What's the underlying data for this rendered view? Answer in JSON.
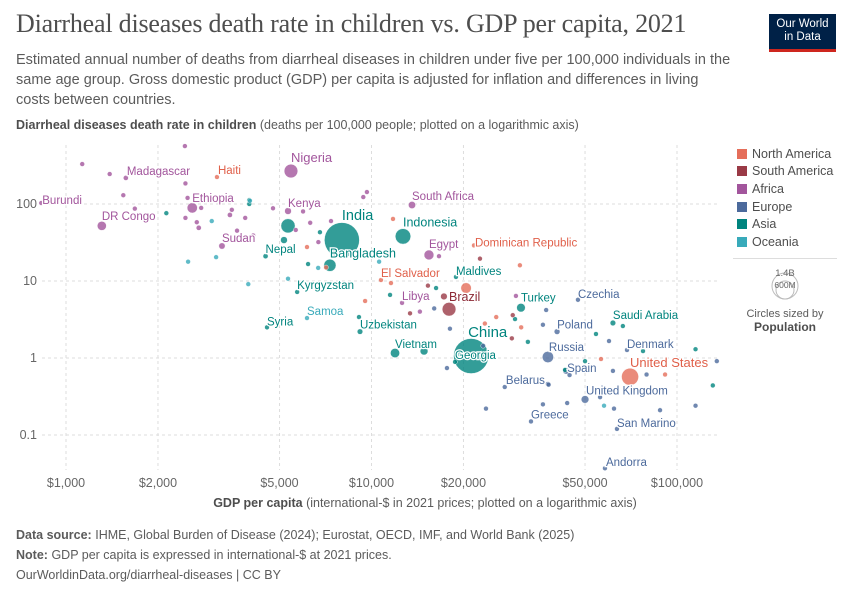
{
  "header": {
    "title": "Diarrheal diseases death rate in children vs. GDP per capita, 2021",
    "subtitle": "Estimated annual number of deaths from diarrheal diseases in children under five per 100,000 individuals in the same age group. Gross domestic product (GDP) per capita is adjusted for inflation and differences in living costs between countries.",
    "logo_line1": "Our World",
    "logo_line2": "in Data"
  },
  "footer": {
    "source_label": "Data source:",
    "source_text": "IHME, Global Burden of Disease (2024); Eurostat, OECD, IMF, and World Bank (2025)",
    "note_label": "Note:",
    "note_text": "GDP per capita is expressed in international-$ at 2021 prices.",
    "url": "OurWorldinData.org/diarrheal-diseases | CC BY"
  },
  "legend": {
    "items": [
      {
        "label": "North America",
        "key": "NA"
      },
      {
        "label": "South America",
        "key": "SA"
      },
      {
        "label": "Africa",
        "key": "AF"
      },
      {
        "label": "Europe",
        "key": "EU"
      },
      {
        "label": "Asia",
        "key": "AS"
      },
      {
        "label": "Oceania",
        "key": "OC"
      }
    ],
    "size_large": "1.4B",
    "size_small": "600M",
    "size_caption": "Circles sized by",
    "size_variable": "Population"
  },
  "chart_data": {
    "type": "scatter",
    "title": "Diarrheal diseases death rate in children vs. GDP per capita, 2021",
    "ylabel_bold": "Diarrheal diseases death rate in children",
    "ylabel_rest": "(deaths per 100,000 people; plotted on a logarithmic axis)",
    "xlabel_bold": "GDP per capita",
    "xlabel_rest": "(international-$ in 2021 prices; plotted on a logarithmic axis)",
    "x_scale": "log",
    "y_scale": "log",
    "xlim": [
      830,
      138000
    ],
    "ylim": [
      0.034,
      570
    ],
    "x_ticks": [
      {
        "v": 1000,
        "label": "$1,000"
      },
      {
        "v": 2000,
        "label": "$2,000"
      },
      {
        "v": 5000,
        "label": "$5,000"
      },
      {
        "v": 10000,
        "label": "$10,000"
      },
      {
        "v": 20000,
        "label": "$20,000"
      },
      {
        "v": 50000,
        "label": "$50,000"
      },
      {
        "v": 100000,
        "label": "$100,000"
      }
    ],
    "y_ticks": [
      {
        "v": 100,
        "label": "100"
      },
      {
        "v": 10,
        "label": "10"
      },
      {
        "v": 1,
        "label": "1"
      },
      {
        "v": 0.1,
        "label": "0.1"
      }
    ],
    "grid": true,
    "legend_position": "right",
    "colors": {
      "NA": "#E56E5A",
      "SA": "#9A3A46",
      "AF": "#A2559C",
      "EU": "#4C6A9C",
      "AS": "#00847E",
      "OC": "#38AABA"
    },
    "label_colors": {
      "NA": "#E0604A",
      "SA": "#8C2A36",
      "AF": "#A2559C",
      "EU": "#4C6A9C",
      "AS": "#00847E",
      "OC": "#38AABA"
    },
    "points": [
      {
        "name": "Nigeria",
        "gdp": 5450,
        "rate": 268,
        "c": "AF",
        "pop": 213
      },
      {
        "name": "Madagascar",
        "gdp": 1570,
        "rate": 218,
        "c": "AF",
        "pop": 29
      },
      {
        "name": "Haiti",
        "gdp": 3120,
        "rate": 224,
        "c": "NA",
        "pop": 11
      },
      {
        "name": "Burundi",
        "gdp": 830,
        "rate": 103,
        "c": "AF",
        "pop": 12
      },
      {
        "name": "Ethiopia",
        "gdp": 2590,
        "rate": 89,
        "c": "AF",
        "pop": 120
      },
      {
        "name": "DR Congo",
        "gdp": 1310,
        "rate": 52,
        "c": "AF",
        "pop": 95
      },
      {
        "name": "Kenya",
        "gdp": 5330,
        "rate": 81,
        "c": "AF",
        "pop": 53
      },
      {
        "name": "Sudan",
        "gdp": 3240,
        "rate": 28.5,
        "c": "AF",
        "pop": 46
      },
      {
        "name": "India",
        "gdp": 8000,
        "rate": 34,
        "c": "AS",
        "pop": 1410
      },
      {
        "name": "South Africa",
        "gdp": 13570,
        "rate": 97,
        "c": "AF",
        "pop": 60
      },
      {
        "name": "Indonesia",
        "gdp": 12680,
        "rate": 38,
        "c": "AS",
        "pop": 275
      },
      {
        "name": "Egypt",
        "gdp": 15420,
        "rate": 21.8,
        "c": "AF",
        "pop": 110
      },
      {
        "name": "Dominican Republic",
        "gdp": 21650,
        "rate": 29,
        "c": "NA",
        "pop": 11
      },
      {
        "name": "Bangladesh",
        "gdp": 7310,
        "rate": 16,
        "c": "AS",
        "pop": 170
      },
      {
        "name": "Nepal",
        "gdp": 4500,
        "rate": 21,
        "c": "AS",
        "pop": 30
      },
      {
        "name": "El Salvador",
        "gdp": 10740,
        "rate": 10.3,
        "c": "NA",
        "pop": 6.3
      },
      {
        "name": "Maldives",
        "gdp": 18900,
        "rate": 11.3,
        "c": "AS",
        "pop": 0.5
      },
      {
        "name": "Kyrgyzstan",
        "gdp": 5710,
        "rate": 7.2,
        "c": "AS",
        "pop": 6.7
      },
      {
        "name": "Libya",
        "gdp": 12590,
        "rate": 5.2,
        "c": "AF",
        "pop": 7
      },
      {
        "name": "Brazil",
        "gdp": 17940,
        "rate": 4.3,
        "c": "SA",
        "pop": 214
      },
      {
        "name": "Turkey",
        "gdp": 30850,
        "rate": 4.5,
        "c": "AS",
        "pop": 85
      },
      {
        "name": "Czechia",
        "gdp": 47400,
        "rate": 5.7,
        "c": "EU",
        "pop": 10.5
      },
      {
        "name": "Saudi Arabia",
        "gdp": 61700,
        "rate": 2.85,
        "c": "AS",
        "pop": 36
      },
      {
        "name": "Samoa",
        "gdp": 6150,
        "rate": 3.3,
        "c": "OC",
        "pop": 0.2
      },
      {
        "name": "Syria",
        "gdp": 4550,
        "rate": 2.5,
        "c": "AS",
        "pop": 21
      },
      {
        "name": "Uzbekistan",
        "gdp": 9170,
        "rate": 2.2,
        "c": "AS",
        "pop": 35
      },
      {
        "name": "Poland",
        "gdp": 40500,
        "rate": 2.2,
        "c": "EU",
        "pop": 38
      },
      {
        "name": "Vietnam",
        "gdp": 11940,
        "rate": 1.16,
        "c": "AS",
        "pop": 98
      },
      {
        "name": "China",
        "gdp": 21180,
        "rate": 1.06,
        "c": "AS",
        "pop": 1410
      },
      {
        "name": "Georgia",
        "gdp": 18770,
        "rate": 0.89,
        "c": "AS",
        "pop": 3.8
      },
      {
        "name": "Russia",
        "gdp": 37800,
        "rate": 1.03,
        "c": "EU",
        "pop": 145
      },
      {
        "name": "Denmark",
        "gdp": 68600,
        "rate": 1.27,
        "c": "EU",
        "pop": 6
      },
      {
        "name": "United States",
        "gdp": 70200,
        "rate": 0.57,
        "c": "NA",
        "pop": 335
      },
      {
        "name": "Spain",
        "gdp": 43350,
        "rate": 0.68,
        "c": "EU",
        "pop": 47
      },
      {
        "name": "Belarus",
        "gdp": 37800,
        "rate": 0.46,
        "c": "EU",
        "pop": 9
      },
      {
        "name": "United Kingdom",
        "gdp": 50000,
        "rate": 0.29,
        "c": "EU",
        "pop": 67
      },
      {
        "name": "Greece",
        "gdp": 33270,
        "rate": 0.15,
        "c": "EU",
        "pop": 10.5
      },
      {
        "name": "San Marino",
        "gdp": 63600,
        "rate": 0.12,
        "c": "EU",
        "pop": 0.03
      },
      {
        "name": "Andorra",
        "gdp": 58100,
        "rate": 0.037,
        "c": "EU",
        "pop": 0.08
      },
      {
        "gdp": 1130,
        "rate": 330,
        "c": "AF",
        "pop": 5
      },
      {
        "gdp": 1390,
        "rate": 245,
        "c": "AF",
        "pop": 5
      },
      {
        "gdp": 1540,
        "rate": 130,
        "c": "AF",
        "pop": 5
      },
      {
        "gdp": 1680,
        "rate": 87,
        "c": "AF",
        "pop": 5
      },
      {
        "gdp": 2450,
        "rate": 565,
        "c": "AF",
        "pop": 5
      },
      {
        "gdp": 2460,
        "rate": 185,
        "c": "AF",
        "pop": 8
      },
      {
        "gdp": 2500,
        "rate": 120,
        "c": "AF",
        "pop": 5
      },
      {
        "gdp": 2460,
        "rate": 66,
        "c": "AF",
        "pop": 5
      },
      {
        "gdp": 2680,
        "rate": 58,
        "c": "AF",
        "pop": 8
      },
      {
        "gdp": 2720,
        "rate": 49,
        "c": "AF",
        "pop": 30
      },
      {
        "gdp": 2770,
        "rate": 89,
        "c": "AF",
        "pop": 5
      },
      {
        "gdp": 3490,
        "rate": 84,
        "c": "AF",
        "pop": 12
      },
      {
        "gdp": 3440,
        "rate": 72,
        "c": "AF",
        "pop": 30
      },
      {
        "gdp": 3630,
        "rate": 45,
        "c": "AF",
        "pop": 5
      },
      {
        "gdp": 3860,
        "rate": 66,
        "c": "AF",
        "pop": 5
      },
      {
        "gdp": 4100,
        "rate": 39,
        "c": "AF",
        "pop": 3
      },
      {
        "gdp": 4760,
        "rate": 88,
        "c": "AF",
        "pop": 8
      },
      {
        "gdp": 5970,
        "rate": 80,
        "c": "AF",
        "pop": 15
      },
      {
        "gdp": 6300,
        "rate": 57,
        "c": "AF",
        "pop": 5
      },
      {
        "gdp": 5650,
        "rate": 46,
        "c": "AF",
        "pop": 4
      },
      {
        "gdp": 7370,
        "rate": 60,
        "c": "AF",
        "pop": 10
      },
      {
        "gdp": 6700,
        "rate": 32,
        "c": "AF",
        "pop": 20
      },
      {
        "gdp": 9660,
        "rate": 143,
        "c": "AF",
        "pop": 3
      },
      {
        "gdp": 9400,
        "rate": 123,
        "c": "AF",
        "pop": 3
      },
      {
        "gdp": 16630,
        "rate": 21,
        "c": "AF",
        "pop": 4
      },
      {
        "gdp": 29700,
        "rate": 6.4,
        "c": "AF",
        "pop": 3
      },
      {
        "gdp": 14400,
        "rate": 4,
        "c": "AF",
        "pop": 20
      },
      {
        "gdp": 2130,
        "rate": 76,
        "c": "AS",
        "pop": 8
      },
      {
        "gdp": 3980,
        "rate": 112,
        "c": "AS",
        "pop": 3
      },
      {
        "gdp": 3980,
        "rate": 100,
        "c": "AS",
        "pop": 3
      },
      {
        "gdp": 5330,
        "rate": 52,
        "c": "AS",
        "pop": 230
      },
      {
        "gdp": 5170,
        "rate": 34,
        "c": "AS",
        "pop": 54
      },
      {
        "gdp": 6780,
        "rate": 43,
        "c": "AS",
        "pop": 4
      },
      {
        "gdp": 6200,
        "rate": 16.6,
        "c": "AS",
        "pop": 4
      },
      {
        "gdp": 11500,
        "rate": 6.6,
        "c": "AS",
        "pop": 4
      },
      {
        "gdp": 9100,
        "rate": 3.4,
        "c": "AS",
        "pop": 4
      },
      {
        "gdp": 16270,
        "rate": 8.1,
        "c": "AS",
        "pop": 4
      },
      {
        "gdp": 14860,
        "rate": 1.23,
        "c": "AS",
        "pop": 70
      },
      {
        "gdp": 29500,
        "rate": 3.2,
        "c": "AS",
        "pop": 8
      },
      {
        "gdp": 32500,
        "rate": 1.62,
        "c": "AS",
        "pop": 4
      },
      {
        "gdp": 54300,
        "rate": 2.05,
        "c": "AS",
        "pop": 3
      },
      {
        "gdp": 66500,
        "rate": 2.6,
        "c": "AS",
        "pop": 3
      },
      {
        "gdp": 77400,
        "rate": 1.23,
        "c": "AS",
        "pop": 3
      },
      {
        "gdp": 115000,
        "rate": 1.3,
        "c": "AS",
        "pop": 3
      },
      {
        "gdp": 131000,
        "rate": 0.44,
        "c": "AS",
        "pop": 3
      },
      {
        "gdp": 43000,
        "rate": 0.7,
        "c": "AS",
        "pop": 10
      },
      {
        "gdp": 50000,
        "rate": 0.91,
        "c": "AS",
        "pop": 3
      },
      {
        "gdp": 16040,
        "rate": 4.4,
        "c": "EU",
        "pop": 3
      },
      {
        "gdp": 18060,
        "rate": 2.4,
        "c": "EU",
        "pop": 3
      },
      {
        "gdp": 23700,
        "rate": 0.22,
        "c": "EU",
        "pop": 3
      },
      {
        "gdp": 17660,
        "rate": 0.74,
        "c": "EU",
        "pop": 12
      },
      {
        "gdp": 23200,
        "rate": 1.44,
        "c": "EU",
        "pop": 3
      },
      {
        "gdp": 36400,
        "rate": 2.7,
        "c": "EU",
        "pop": 3
      },
      {
        "gdp": 37300,
        "rate": 4.2,
        "c": "EU",
        "pop": 3
      },
      {
        "gdp": 59900,
        "rate": 1.66,
        "c": "EU",
        "pop": 3
      },
      {
        "gdp": 61700,
        "rate": 0.68,
        "c": "EU",
        "pop": 17
      },
      {
        "gdp": 79500,
        "rate": 0.61,
        "c": "EU",
        "pop": 3
      },
      {
        "gdp": 38000,
        "rate": 0.45,
        "c": "EU",
        "pop": 3
      },
      {
        "gdp": 27300,
        "rate": 0.42,
        "c": "EU",
        "pop": 3
      },
      {
        "gdp": 36400,
        "rate": 0.25,
        "c": "EU",
        "pop": 3
      },
      {
        "gdp": 43700,
        "rate": 0.26,
        "c": "EU",
        "pop": 3
      },
      {
        "gdp": 56000,
        "rate": 0.31,
        "c": "EU",
        "pop": 3
      },
      {
        "gdp": 62200,
        "rate": 0.22,
        "c": "EU",
        "pop": 3
      },
      {
        "gdp": 88000,
        "rate": 0.21,
        "c": "EU",
        "pop": 3
      },
      {
        "gdp": 115000,
        "rate": 0.24,
        "c": "EU",
        "pop": 3
      },
      {
        "gdp": 135000,
        "rate": 0.91,
        "c": "EU",
        "pop": 3
      },
      {
        "gdp": 44500,
        "rate": 0.6,
        "c": "EU",
        "pop": 10
      },
      {
        "gdp": 11760,
        "rate": 64,
        "c": "NA",
        "pop": 3
      },
      {
        "gdp": 30600,
        "rate": 16,
        "c": "NA",
        "pop": 3
      },
      {
        "gdp": 11580,
        "rate": 9.4,
        "c": "NA",
        "pop": 3
      },
      {
        "gdp": 9530,
        "rate": 5.5,
        "c": "NA",
        "pop": 3
      },
      {
        "gdp": 6150,
        "rate": 27.6,
        "c": "NA",
        "pop": 3
      },
      {
        "gdp": 7100,
        "rate": 15,
        "c": "NA",
        "pop": 3
      },
      {
        "gdp": 25600,
        "rate": 3.4,
        "c": "NA",
        "pop": 3
      },
      {
        "gdp": 30900,
        "rate": 2.5,
        "c": "NA",
        "pop": 3
      },
      {
        "gdp": 23500,
        "rate": 2.8,
        "c": "NA",
        "pop": 3
      },
      {
        "gdp": 56400,
        "rate": 0.97,
        "c": "NA",
        "pop": 3
      },
      {
        "gdp": 91400,
        "rate": 0.61,
        "c": "NA",
        "pop": 3
      },
      {
        "gdp": 20400,
        "rate": 8.1,
        "c": "NA",
        "pop": 127
      },
      {
        "gdp": 13370,
        "rate": 3.8,
        "c": "SA",
        "pop": 3
      },
      {
        "gdp": 15300,
        "rate": 8.7,
        "c": "SA",
        "pop": 3
      },
      {
        "gdp": 22650,
        "rate": 19.5,
        "c": "SA",
        "pop": 3
      },
      {
        "gdp": 17260,
        "rate": 6.3,
        "c": "SA",
        "pop": 51
      },
      {
        "gdp": 29000,
        "rate": 3.6,
        "c": "SA",
        "pop": 3
      },
      {
        "gdp": 28800,
        "rate": 1.8,
        "c": "SA",
        "pop": 3
      },
      {
        "gdp": 2510,
        "rate": 17.8,
        "c": "OC",
        "pop": 3
      },
      {
        "gdp": 3100,
        "rate": 20.4,
        "c": "OC",
        "pop": 3
      },
      {
        "gdp": 3950,
        "rate": 9.1,
        "c": "OC",
        "pop": 3
      },
      {
        "gdp": 3000,
        "rate": 60,
        "c": "OC",
        "pop": 3
      },
      {
        "gdp": 4000,
        "rate": 110,
        "c": "OC",
        "pop": 3
      },
      {
        "gdp": 5330,
        "rate": 10.7,
        "c": "OC",
        "pop": 3
      },
      {
        "gdp": 6690,
        "rate": 14.8,
        "c": "OC",
        "pop": 3
      },
      {
        "gdp": 10590,
        "rate": 17.8,
        "c": "OC",
        "pop": 3
      },
      {
        "gdp": 57700,
        "rate": 0.24,
        "c": "OC",
        "pop": 5
      }
    ]
  }
}
